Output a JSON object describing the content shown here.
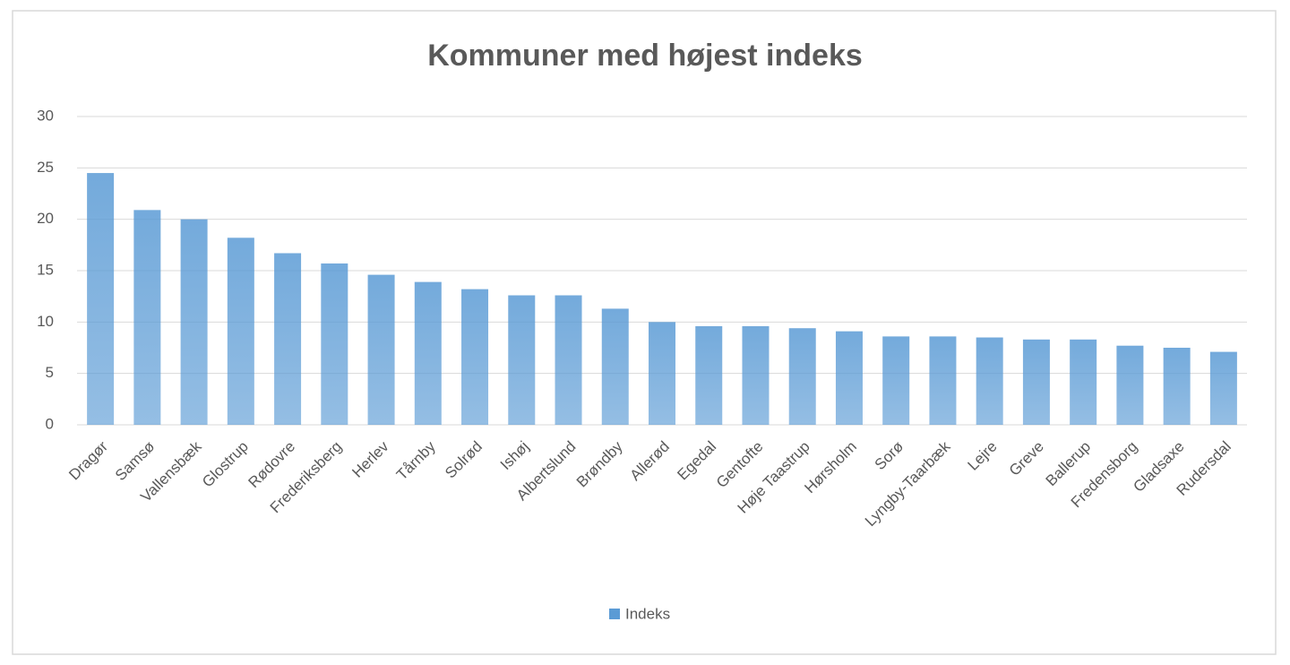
{
  "chart_data": {
    "type": "bar",
    "title": "Kommuner med højest indeks",
    "categories": [
      "Dragør",
      "Samsø",
      "Vallensbæk",
      "Glostrup",
      "Rødovre",
      "Frederiksberg",
      "Herlev",
      "Tårnby",
      "Solrød",
      "Ishøj",
      "Albertslund",
      "Brøndby",
      "Allerød",
      "Egedal",
      "Gentofte",
      "Høje Taastrup",
      "Hørsholm",
      "Sorø",
      "Lyngby-Taarbæk",
      "Lejre",
      "Greve",
      "Ballerup",
      "Fredensborg",
      "Gladsaxe",
      "Rudersdal"
    ],
    "series": [
      {
        "name": "Indeks",
        "color": "#5b9bd5",
        "values": [
          24.5,
          20.9,
          20,
          18.2,
          16.7,
          15.7,
          14.6,
          13.9,
          13.2,
          12.6,
          12.6,
          11.3,
          10,
          9.6,
          9.6,
          9.4,
          9.1,
          8.6,
          8.6,
          8.5,
          8.3,
          8.3,
          7.7,
          7.5,
          7.1
        ]
      }
    ],
    "ylim": [
      0,
      30
    ],
    "yticks": [
      0,
      5,
      10,
      15,
      20,
      25,
      30
    ],
    "grid": true,
    "legend": "bottom"
  }
}
